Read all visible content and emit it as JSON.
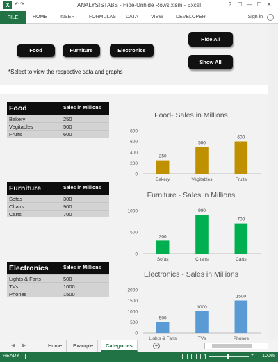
{
  "window": {
    "title": "ANALYSISTABS - Hide-Unhide Rows.xlsm - Excel",
    "logo": "X",
    "controls": [
      "?",
      "—",
      "☐",
      "—",
      "☐",
      "✕"
    ]
  },
  "ribbon": {
    "file": "FILE",
    "tabs": [
      "HOME",
      "INSERT",
      "FORMULAS",
      "DATA",
      "VIEW",
      "DEVELOPER"
    ],
    "signin": "Sign in"
  },
  "buttons": {
    "food": "Food",
    "furniture": "Furniture",
    "electronics": "Electronics",
    "hide_all": "Hide All",
    "show_all": "Show All"
  },
  "note": "*Select to view the respective data and graphs",
  "tables": [
    {
      "category": "Food",
      "column": "Sales in Millions",
      "rows": [
        {
          "name": "Bakery",
          "value": "250"
        },
        {
          "name": "Vegitables",
          "value": "500"
        },
        {
          "name": "Fruits",
          "value": "600"
        }
      ]
    },
    {
      "category": "Furniture",
      "column": "Sales in Millions",
      "rows": [
        {
          "name": "Sofas",
          "value": "300"
        },
        {
          "name": "Chairs",
          "value": "900"
        },
        {
          "name": "Carts",
          "value": "700"
        }
      ]
    },
    {
      "category": "Electronics",
      "column": "Sales in Millions",
      "rows": [
        {
          "name": "Lights & Fans",
          "value": "500"
        },
        {
          "name": "TVs",
          "value": "1000"
        },
        {
          "name": "Phones",
          "value": "1500"
        }
      ]
    }
  ],
  "chart_data": [
    {
      "type": "bar",
      "title": "Food- Sales in Millions",
      "categories": [
        "Bakery",
        "Vegitables",
        "Fruits"
      ],
      "values": [
        250,
        500,
        600
      ],
      "ylim": [
        0,
        800
      ],
      "yticks": [
        0,
        200,
        400,
        600,
        800
      ],
      "color": "#bf9000",
      "grid": false
    },
    {
      "type": "bar",
      "title": "Furniture - Sales in Millions",
      "categories": [
        "Sofas",
        "Chairs",
        "Carts"
      ],
      "values": [
        300,
        900,
        700
      ],
      "ylim": [
        0,
        1000
      ],
      "yticks": [
        0,
        500,
        1000
      ],
      "color": "#00b050",
      "grid": false
    },
    {
      "type": "bar",
      "title": "Electronics - Sales in Millions",
      "categories": [
        "Lights & Fans",
        "TVs",
        "Phones"
      ],
      "values": [
        500,
        1000,
        1500
      ],
      "ylim": [
        0,
        2000
      ],
      "yticks": [
        0,
        500,
        1000,
        1500,
        2000
      ],
      "color": "#5b9bd5",
      "grid": false
    }
  ],
  "sheet_tabs": [
    "Home",
    "Example",
    "Categories"
  ],
  "active_sheet": "Categories",
  "status": {
    "ready": "READY",
    "zoom": "100%",
    "zoom_minus": "-",
    "zoom_plus": "+"
  }
}
